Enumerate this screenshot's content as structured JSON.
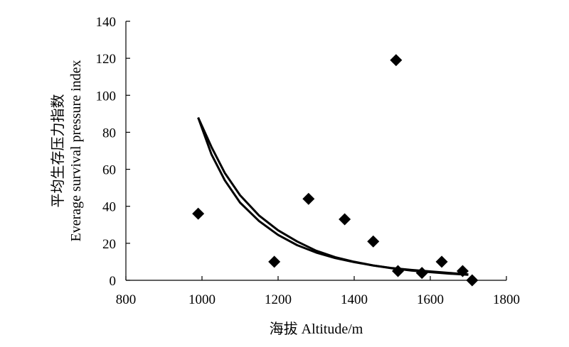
{
  "chart_data": {
    "type": "scatter",
    "title": "",
    "xlabel": "海拔 Altitude/m",
    "ylabel_lines": [
      "平均生存压力指数",
      "Everage survival pressure index"
    ],
    "xlim": [
      800,
      1800
    ],
    "ylim": [
      0,
      140
    ],
    "x_ticks": [
      800,
      1000,
      1200,
      1400,
      1600,
      1800
    ],
    "y_ticks": [
      0,
      20,
      40,
      60,
      80,
      100,
      120,
      140
    ],
    "grid": false,
    "legend": "none",
    "series": [
      {
        "kind": "points",
        "marker": "diamond",
        "color": "#000000",
        "points": [
          {
            "x": 990,
            "y": 36
          },
          {
            "x": 1190,
            "y": 10
          },
          {
            "x": 1280,
            "y": 44
          },
          {
            "x": 1375,
            "y": 33
          },
          {
            "x": 1450,
            "y": 21
          },
          {
            "x": 1510,
            "y": 119
          },
          {
            "x": 1515,
            "y": 5
          },
          {
            "x": 1578,
            "y": 4
          },
          {
            "x": 1630,
            "y": 10
          },
          {
            "x": 1685,
            "y": 5
          },
          {
            "x": 1710,
            "y": 0
          }
        ]
      },
      {
        "kind": "curve",
        "color": "#000000",
        "points": [
          {
            "x": 990,
            "y": 88
          },
          {
            "x": 1025,
            "y": 72
          },
          {
            "x": 1060,
            "y": 58
          },
          {
            "x": 1100,
            "y": 46
          },
          {
            "x": 1150,
            "y": 35
          },
          {
            "x": 1200,
            "y": 27
          },
          {
            "x": 1250,
            "y": 21
          },
          {
            "x": 1300,
            "y": 16
          },
          {
            "x": 1350,
            "y": 12.5
          },
          {
            "x": 1400,
            "y": 10
          },
          {
            "x": 1450,
            "y": 8
          },
          {
            "x": 1500,
            "y": 6.5
          },
          {
            "x": 1550,
            "y": 5.3
          },
          {
            "x": 1600,
            "y": 4.4
          },
          {
            "x": 1650,
            "y": 3.6
          },
          {
            "x": 1700,
            "y": 3
          }
        ]
      },
      {
        "kind": "curve",
        "color": "#000000",
        "points": [
          {
            "x": 990,
            "y": 88
          },
          {
            "x": 1025,
            "y": 68
          },
          {
            "x": 1060,
            "y": 54
          },
          {
            "x": 1100,
            "y": 42
          },
          {
            "x": 1150,
            "y": 32
          },
          {
            "x": 1200,
            "y": 24.5
          },
          {
            "x": 1250,
            "y": 19
          },
          {
            "x": 1300,
            "y": 15
          },
          {
            "x": 1350,
            "y": 12
          },
          {
            "x": 1400,
            "y": 9.8
          },
          {
            "x": 1450,
            "y": 8
          },
          {
            "x": 1500,
            "y": 6.6
          },
          {
            "x": 1550,
            "y": 5.6
          },
          {
            "x": 1600,
            "y": 4.8
          },
          {
            "x": 1650,
            "y": 4
          },
          {
            "x": 1700,
            "y": 3.2
          }
        ]
      }
    ]
  }
}
